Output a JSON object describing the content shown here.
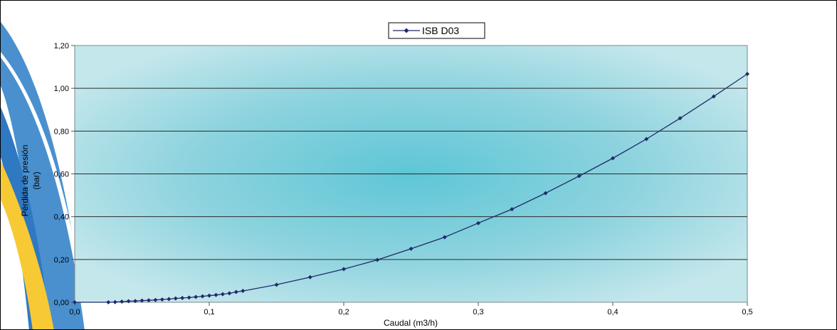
{
  "chart_data": {
    "type": "line",
    "title": "",
    "xlabel": "Caudal (m3/h)",
    "ylabel_lines": [
      "Pérdida de presión",
      "(bar)"
    ],
    "xlim": [
      0,
      0.5
    ],
    "ylim": [
      0,
      1.2
    ],
    "xticks": [
      "0,0",
      "0,1",
      "0,2",
      "0,3",
      "0,4",
      "0,5"
    ],
    "yticks": [
      "0,00",
      "0,20",
      "0,40",
      "0,60",
      "0,80",
      "1,00",
      "1,20"
    ],
    "grid": "horizontal",
    "legend_position": "top-center",
    "series": [
      {
        "name": "ISB D03",
        "color": "#1f2a6b",
        "marker": "diamond",
        "x": [
          0,
          0.025,
          0.03,
          0.035,
          0.04,
          0.045,
          0.05,
          0.055,
          0.06,
          0.065,
          0.07,
          0.075,
          0.08,
          0.085,
          0.09,
          0.095,
          0.1,
          0.105,
          0.11,
          0.115,
          0.12,
          0.125,
          0.15,
          0.175,
          0.2,
          0.225,
          0.25,
          0.275,
          0.3,
          0.325,
          0.35,
          0.375,
          0.4,
          0.425,
          0.45,
          0.475,
          0.5
        ],
        "y": [
          0,
          0.0,
          0.001,
          0.003,
          0.005,
          0.006,
          0.008,
          0.009,
          0.011,
          0.013,
          0.015,
          0.018,
          0.02,
          0.022,
          0.025,
          0.028,
          0.031,
          0.034,
          0.038,
          0.042,
          0.048,
          0.053,
          0.082,
          0.117,
          0.155,
          0.198,
          0.25,
          0.304,
          0.37,
          0.435,
          0.51,
          0.59,
          0.673,
          0.763,
          0.86,
          0.962,
          1.067
        ]
      }
    ]
  }
}
